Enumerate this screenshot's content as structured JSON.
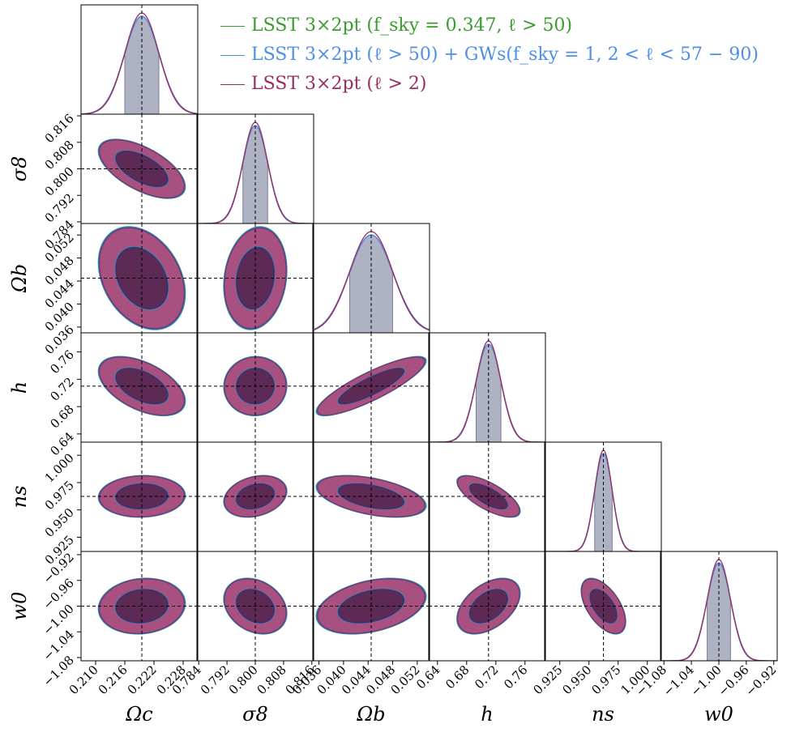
{
  "legend": [
    {
      "label": "LSST 3×2pt (f_sky = 0.347, ℓ > 50)",
      "color": "#3a9b2e"
    },
    {
      "label": "LSST 3×2pt (ℓ > 50) + GWs(f_sky = 1, 2 < ℓ < 57 − 90)",
      "color": "#4f8fe6"
    },
    {
      "label": "LSST 3×2pt (ℓ > 2)",
      "color": "#9b2d5e"
    }
  ],
  "chart_data": {
    "type": "corner",
    "parameters": [
      {
        "name": "Ω_c",
        "label": "Ωc",
        "fiducial": 0.2195,
        "sigma": 0.0035,
        "range": [
          0.207,
          0.231
        ],
        "ticks": [
          "0.210",
          "0.216",
          "0.222",
          "0.228"
        ],
        "tick_values": [
          0.21,
          0.216,
          0.222,
          0.228
        ]
      },
      {
        "name": "σ_8",
        "label": "σ8",
        "fiducial": 0.8,
        "sigma": 0.0035,
        "range": [
          0.7835,
          0.8165
        ],
        "ticks": [
          "0.784",
          "0.792",
          "0.800",
          "0.808",
          "0.816"
        ],
        "tick_values": [
          0.784,
          0.792,
          0.8,
          0.808,
          0.816
        ]
      },
      {
        "name": "Ω_b",
        "label": "Ωb",
        "fiducial": 0.0445,
        "sigma": 0.0035,
        "range": [
          0.035,
          0.054
        ],
        "ticks": [
          "0.036",
          "0.040",
          "0.044",
          "0.048",
          "0.052"
        ],
        "tick_values": [
          0.036,
          0.04,
          0.044,
          0.048,
          0.052
        ]
      },
      {
        "name": "h",
        "label": "h",
        "fiducial": 0.71,
        "sigma": 0.017,
        "range": [
          0.628,
          0.788
        ],
        "ticks": [
          "0.64",
          "0.68",
          "0.72",
          "0.76"
        ],
        "tick_values": [
          0.64,
          0.68,
          0.72,
          0.76
        ]
      },
      {
        "name": "n_s",
        "label": "ns",
        "fiducial": 0.9624,
        "sigma": 0.0075,
        "range": [
          0.912,
          1.012
        ],
        "ticks": [
          "0.925",
          "0.950",
          "0.975",
          "1.000"
        ],
        "tick_values": [
          0.925,
          0.95,
          0.975,
          1.0
        ]
      },
      {
        "name": "w_0",
        "label": "w0",
        "fiducial": -1.0,
        "sigma": 0.017,
        "range": [
          -1.085,
          -0.915
        ],
        "ticks": [
          "−1.08",
          "−1.04",
          "−1.00",
          "−0.96",
          "−0.92"
        ],
        "tick_values": [
          -1.08,
          -1.04,
          -1.0,
          -0.96,
          -0.92
        ]
      }
    ],
    "correlations": [
      [
        1,
        -0.6,
        -0.3,
        -0.5,
        0.05,
        0.1
      ],
      [
        -0.6,
        1,
        0.15,
        0.02,
        0.25,
        -0.25
      ],
      [
        -0.3,
        0.15,
        1,
        0.85,
        -0.45,
        0.35
      ],
      [
        -0.5,
        0.02,
        0.85,
        1,
        -0.7,
        0.45
      ],
      [
        0.05,
        0.25,
        -0.45,
        -0.7,
        1,
        -0.55
      ],
      [
        0.1,
        -0.25,
        0.35,
        0.45,
        -0.55,
        1
      ]
    ],
    "series": [
      {
        "name": "LSST 3×2pt (f_sky = 0.347, ℓ > 50)",
        "color": "#3a9b2e",
        "contour_color": "#2f9e9a",
        "sigma_scale": 1.03
      },
      {
        "name": "LSST 3×2pt (ℓ > 50) + GWs(f_sky = 1, 2 < ℓ < 57 − 90)",
        "color": "#4f8fe6",
        "contour_color": "#3b5fb5",
        "sigma_scale": 1.015
      },
      {
        "name": "LSST 3×2pt (ℓ > 2)",
        "color": "#9b2d5e",
        "contour_color": "#8e3a73",
        "sigma_scale": 1.0
      }
    ],
    "contour_levels": [
      "1σ",
      "2σ"
    ],
    "diagonal_shading": "1σ interval, #7a7f9a"
  }
}
